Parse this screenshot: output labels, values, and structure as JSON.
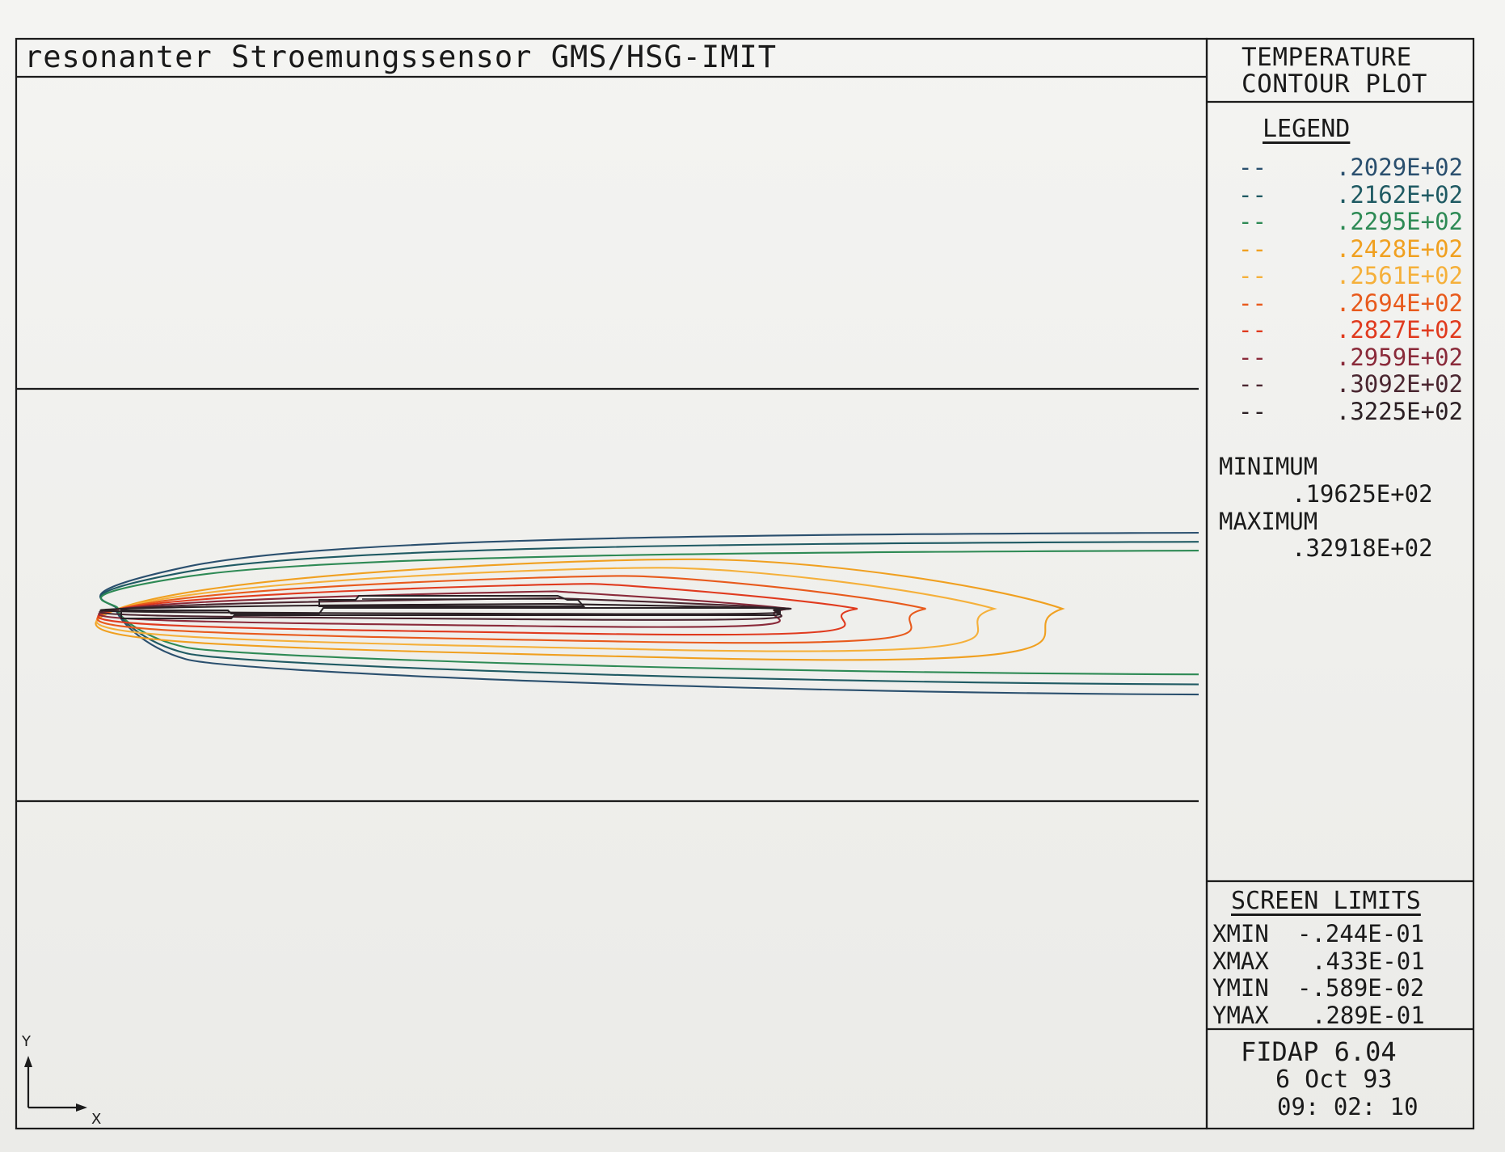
{
  "title": "resonanter Stroemungssensor GMS/HSG-IMIT",
  "panel": {
    "title_line1": "TEMPERATURE",
    "title_line2": "CONTOUR PLOT"
  },
  "legend": {
    "heading": "LEGEND",
    "dash": "--",
    "entries": [
      {
        "value": ".2029E+02",
        "color": "#2a4f6e"
      },
      {
        "value": ".2162E+02",
        "color": "#1f5a63"
      },
      {
        "value": ".2295E+02",
        "color": "#2e8a55"
      },
      {
        "value": ".2428E+02",
        "color": "#f0a020"
      },
      {
        "value": ".2561E+02",
        "color": "#f5b03a"
      },
      {
        "value": ".2694E+02",
        "color": "#e85a1c"
      },
      {
        "value": ".2827E+02",
        "color": "#e03a1e"
      },
      {
        "value": ".2959E+02",
        "color": "#8a2a3a"
      },
      {
        "value": ".3092E+02",
        "color": "#4a2630"
      },
      {
        "value": ".3225E+02",
        "color": "#2c2024"
      }
    ]
  },
  "extrema": {
    "minimum_label": "MINIMUM",
    "minimum_value": ".19625E+02",
    "maximum_label": "MAXIMUM",
    "maximum_value": ".32918E+02"
  },
  "screen_limits": {
    "heading": "SCREEN LIMITS",
    "rows": [
      {
        "label": "XMIN",
        "value": "-.244E-01"
      },
      {
        "label": "XMAX",
        "value": ".433E-01"
      },
      {
        "label": "YMIN",
        "value": "-.589E-02"
      },
      {
        "label": "YMAX",
        "value": ".289E-01"
      }
    ]
  },
  "footer": {
    "program": "FIDAP 6.04",
    "date": "6 Oct 93",
    "time": "09: 02: 10"
  },
  "axes": {
    "x_label": "X",
    "y_label": "Y"
  },
  "chart_data": {
    "type": "contour",
    "title": "TEMPERATURE CONTOUR PLOT",
    "subtitle": "resonanter Stroemungssensor GMS/HSG-IMIT",
    "variable": "temperature",
    "levels": [
      20.29,
      21.62,
      22.95,
      24.28,
      25.61,
      26.94,
      28.27,
      29.59,
      30.92,
      32.25
    ],
    "level_labels": [
      ".2029E+02",
      ".2162E+02",
      ".2295E+02",
      ".2428E+02",
      ".2561E+02",
      ".2694E+02",
      ".2827E+02",
      ".2959E+02",
      ".3092E+02",
      ".3225E+02"
    ],
    "minimum": 19.625,
    "maximum": 32.918,
    "xlim": [
      -0.0244,
      0.0433
    ],
    "ylim": [
      -0.00589,
      0.0289
    ],
    "xlabel": "X",
    "ylabel": "Y"
  }
}
